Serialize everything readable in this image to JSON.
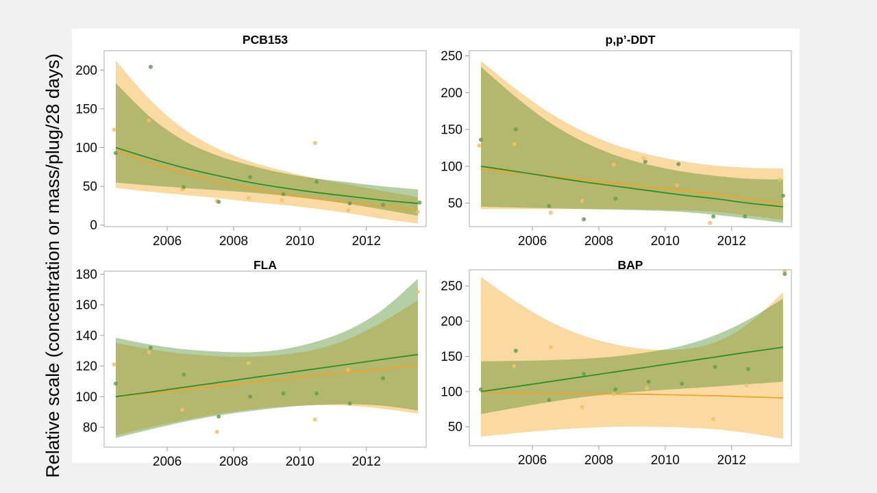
{
  "y_axis_label": "Relative scale (concentration or mass/plug/28 days)",
  "colors": {
    "green_line": "#2e8b2c",
    "green_band": "#4c8c26",
    "green_point": "#64a050",
    "orange_line": "#f0a32b",
    "orange_band": "#f5a421",
    "orange_point": "#f4c062",
    "plot_border": "#ababab",
    "tick": "#9b9b9b",
    "panel": "#ffffff",
    "background": "#f1f1f1"
  },
  "chart_data": [
    {
      "type": "line",
      "title": "PCB153",
      "xlim": [
        2004.1,
        2013.8
      ],
      "ylim": [
        -2,
        225
      ],
      "x_ticks": [
        2006,
        2008,
        2010,
        2012
      ],
      "y_ticks": [
        0,
        50,
        100,
        150,
        200
      ],
      "x": [
        2004.45,
        2005.5,
        2006.5,
        2007.5,
        2008.5,
        2009.5,
        2010.5,
        2011.5,
        2012.5,
        2013.55
      ],
      "series": [
        {
          "name": "green",
          "line": [
            100,
            86,
            74,
            64,
            55,
            48,
            42,
            37,
            32,
            28
          ],
          "band_upper": [
            183,
            139,
            109,
            90,
            77,
            67,
            60,
            55,
            50,
            46
          ],
          "band_lower": [
            55,
            51,
            48,
            45,
            42,
            38,
            33,
            27,
            20,
            12
          ],
          "points": [
            [
              2004.45,
              93
            ],
            [
              2005.5,
              204
            ],
            [
              2006.5,
              49
            ],
            [
              2007.55,
              30
            ],
            [
              2008.5,
              62
            ],
            [
              2009.5,
              40
            ],
            [
              2010.5,
              56
            ],
            [
              2011.5,
              28
            ],
            [
              2012.5,
              26
            ],
            [
              2013.6,
              29
            ]
          ]
        },
        {
          "name": "orange",
          "line": [
            97,
            80,
            67,
            56,
            47,
            40,
            34,
            29,
            24,
            20
          ],
          "band_upper": [
            212,
            161,
            124,
            99,
            82,
            70,
            60,
            52,
            44,
            36
          ],
          "band_lower": [
            48,
            43,
            39,
            35,
            30,
            26,
            21,
            15,
            8,
            2
          ],
          "points": [
            [
              2004.4,
              123
            ],
            [
              2005.45,
              135
            ],
            [
              2006.45,
              46
            ],
            [
              2007.5,
              31
            ],
            [
              2008.45,
              35
            ],
            [
              2009.45,
              32
            ],
            [
              2010.45,
              106
            ],
            [
              2011.45,
              19
            ],
            [
              2013.55,
              17
            ]
          ]
        }
      ]
    },
    {
      "type": "line",
      "title": "p,p’-DDT",
      "xlim": [
        2004.1,
        2013.8
      ],
      "ylim": [
        18,
        257
      ],
      "x_ticks": [
        2006,
        2008,
        2010,
        2012
      ],
      "y_ticks": [
        50,
        100,
        150,
        200,
        250
      ],
      "x": [
        2004.45,
        2005.5,
        2006.5,
        2007.5,
        2008.5,
        2009.5,
        2010.5,
        2011.5,
        2012.5,
        2013.55
      ],
      "series": [
        {
          "name": "green",
          "line": [
            100,
            93,
            86,
            79,
            73,
            67,
            61,
            56,
            50,
            45
          ],
          "band_upper": [
            235,
            194,
            160,
            134,
            115,
            102,
            93,
            87,
            83,
            82
          ],
          "band_lower": [
            45,
            44,
            43,
            42,
            41,
            40,
            38,
            34,
            29,
            23
          ],
          "points": [
            [
              2004.45,
              136
            ],
            [
              2005.5,
              150
            ],
            [
              2006.5,
              46
            ],
            [
              2007.55,
              28
            ],
            [
              2008.5,
              56
            ],
            [
              2009.4,
              106
            ],
            [
              2010.4,
              103
            ],
            [
              2011.45,
              32
            ],
            [
              2012.4,
              32
            ],
            [
              2013.55,
              60
            ]
          ]
        },
        {
          "name": "orange",
          "line": [
            96,
            92,
            87,
            82,
            77,
            72,
            67,
            62,
            56,
            49
          ],
          "band_upper": [
            243,
            205,
            173,
            148,
            129,
            116,
            107,
            101,
            98,
            97
          ],
          "band_lower": [
            42,
            42,
            42,
            42,
            42,
            41,
            40,
            38,
            33,
            27
          ],
          "points": [
            [
              2004.4,
              128
            ],
            [
              2005.45,
              130
            ],
            [
              2006.55,
              37
            ],
            [
              2007.5,
              53
            ],
            [
              2008.45,
              102
            ],
            [
              2009.35,
              111
            ],
            [
              2010.35,
              74
            ],
            [
              2011.35,
              23
            ],
            [
              2013.45,
              82
            ]
          ]
        }
      ]
    },
    {
      "type": "line",
      "title": "FLA",
      "xlim": [
        2004.1,
        2013.8
      ],
      "ylim": [
        67,
        182
      ],
      "x_ticks": [
        2006,
        2008,
        2010,
        2012
      ],
      "y_ticks": [
        80,
        100,
        120,
        140,
        160,
        180
      ],
      "x": [
        2004.45,
        2005.5,
        2006.5,
        2007.5,
        2008.5,
        2009.5,
        2010.5,
        2011.5,
        2012.5,
        2013.55
      ],
      "series": [
        {
          "name": "green",
          "line": [
            100,
            103,
            106.1,
            109.1,
            112.2,
            115.2,
            118.3,
            121.3,
            124.4,
            127.5
          ],
          "band_upper": [
            138.5,
            134,
            131,
            129.5,
            129,
            131,
            136,
            144,
            157,
            177
          ],
          "band_lower": [
            73,
            78.5,
            83.5,
            87.5,
            90.5,
            93,
            94.5,
            95,
            94,
            91
          ],
          "points": [
            [
              2004.45,
              108.5
            ],
            [
              2005.5,
              132
            ],
            [
              2006.5,
              114.5
            ],
            [
              2007.55,
              87
            ],
            [
              2008.5,
              100
            ],
            [
              2009.5,
              102
            ],
            [
              2010.5,
              102
            ],
            [
              2011.5,
              95.5
            ],
            [
              2012.5,
              112
            ]
          ]
        },
        {
          "name": "orange",
          "line": [
            100,
            102.3,
            104.6,
            106.9,
            109.1,
            111.4,
            113.7,
            116,
            118.2,
            120.5
          ],
          "band_upper": [
            135,
            131,
            128,
            126.5,
            126,
            127.5,
            131,
            138,
            149,
            163
          ],
          "band_lower": [
            74.5,
            80,
            84.5,
            88.5,
            91.5,
            93.5,
            94.5,
            94,
            92,
            89
          ],
          "points": [
            [
              2004.4,
              121
            ],
            [
              2005.45,
              129
            ],
            [
              2006.45,
              91.5
            ],
            [
              2007.5,
              77
            ],
            [
              2008.45,
              122
            ],
            [
              2010.45,
              85
            ],
            [
              2011.45,
              117.5
            ],
            [
              2013.55,
              168.5
            ]
          ]
        }
      ]
    },
    {
      "type": "line",
      "title": "BAP",
      "xlim": [
        2004.1,
        2013.8
      ],
      "ylim": [
        23,
        273
      ],
      "x_ticks": [
        2006,
        2008,
        2010,
        2012
      ],
      "y_ticks": [
        50,
        100,
        150,
        200,
        250
      ],
      "x": [
        2004.45,
        2005.5,
        2006.5,
        2007.5,
        2008.5,
        2009.5,
        2010.5,
        2011.5,
        2012.5,
        2013.55
      ],
      "series": [
        {
          "name": "green",
          "line": [
            100,
            107,
            114,
            121,
            128,
            135,
            142,
            149,
            156,
            163
          ],
          "band_upper": [
            143,
            143.5,
            144.5,
            146.5,
            150,
            156,
            165,
            180,
            202,
            232
          ],
          "band_lower": [
            68,
            77,
            85,
            92,
            97,
            101,
            104,
            107,
            110.5,
            114
          ],
          "points": [
            [
              2004.45,
              103
            ],
            [
              2005.5,
              158
            ],
            [
              2006.5,
              88
            ],
            [
              2007.55,
              125
            ],
            [
              2008.5,
              103
            ],
            [
              2009.5,
              114
            ],
            [
              2010.5,
              111
            ],
            [
              2011.5,
              135
            ],
            [
              2012.5,
              132
            ],
            [
              2013.6,
              267
            ]
          ]
        },
        {
          "name": "orange",
          "line": [
            99,
            98,
            97.5,
            97,
            96.5,
            96,
            95,
            94,
            92.5,
            91
          ],
          "band_upper": [
            263,
            228,
            200,
            180,
            167,
            160,
            160,
            170,
            196,
            241
          ],
          "band_lower": [
            36,
            41,
            45,
            48,
            50,
            50,
            49,
            46.5,
            41,
            33
          ],
          "points": [
            [
              2005.45,
              136
            ],
            [
              2006.55,
              163
            ],
            [
              2007.5,
              78
            ],
            [
              2008.45,
              96
            ],
            [
              2009.45,
              105
            ],
            [
              2011.45,
              61
            ],
            [
              2012.45,
              109
            ],
            [
              2013.6,
              271
            ]
          ]
        }
      ]
    }
  ]
}
